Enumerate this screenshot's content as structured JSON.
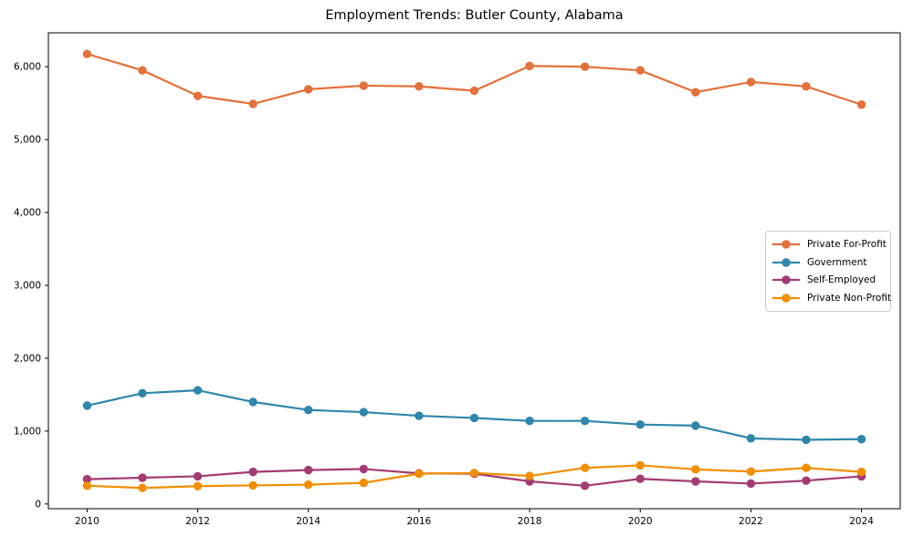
{
  "window": {
    "title": "Employment Trends: Butler County, Alabama"
  },
  "chart_data": {
    "type": "line",
    "title": "Employment Trends: Butler County, Alabama",
    "x": [
      2010,
      2011,
      2012,
      2013,
      2014,
      2015,
      2016,
      2017,
      2018,
      2019,
      2020,
      2021,
      2022,
      2023,
      2024
    ],
    "series": [
      {
        "name": "Private For-Profit",
        "color": "#E4703A",
        "values": [
          6175,
          5950,
          5600,
          5490,
          5690,
          5740,
          5730,
          5670,
          6010,
          6000,
          5950,
          5650,
          5790,
          5730,
          5480
        ]
      },
      {
        "name": "Government",
        "color": "#2E86AB",
        "values": [
          1350,
          1520,
          1560,
          1400,
          1290,
          1260,
          1210,
          1180,
          1140,
          1140,
          1090,
          1075,
          900,
          880,
          890
        ]
      },
      {
        "name": "Self-Employed",
        "color": "#A23B72",
        "values": [
          340,
          360,
          380,
          440,
          465,
          480,
          420,
          415,
          310,
          250,
          345,
          310,
          280,
          320,
          380
        ]
      },
      {
        "name": "Private Non-Profit",
        "color": "#F18F01",
        "values": [
          250,
          220,
          245,
          255,
          265,
          290,
          415,
          425,
          385,
          495,
          530,
          475,
          445,
          495,
          440
        ]
      }
    ],
    "xlabel": "",
    "ylabel": "",
    "xticks": [
      2010,
      2012,
      2014,
      2016,
      2018,
      2020,
      2022,
      2024
    ],
    "yticks": [
      0,
      1000,
      2000,
      3000,
      4000,
      5000,
      6000
    ],
    "ytick_format": "thousands-comma",
    "xlim": [
      2009.3,
      2024.7
    ],
    "ylim": [
      -65,
      6465
    ],
    "grid": false,
    "legend_position": "center-right",
    "marker": "circle",
    "line_width": 2.2,
    "marker_radius": 4.7,
    "axis_color": "#000000"
  }
}
